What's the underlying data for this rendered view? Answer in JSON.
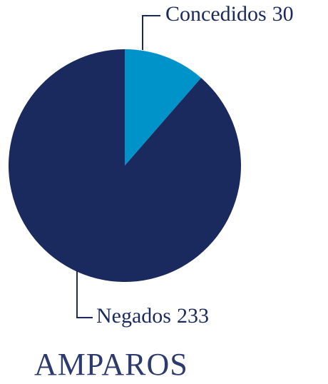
{
  "chart_data": {
    "type": "pie",
    "title": "AMPAROS",
    "categories": [
      "Concedidos",
      "Negados"
    ],
    "values": [
      30,
      233
    ],
    "colors": [
      "#0093c9",
      "#1b2a5e"
    ]
  }
}
